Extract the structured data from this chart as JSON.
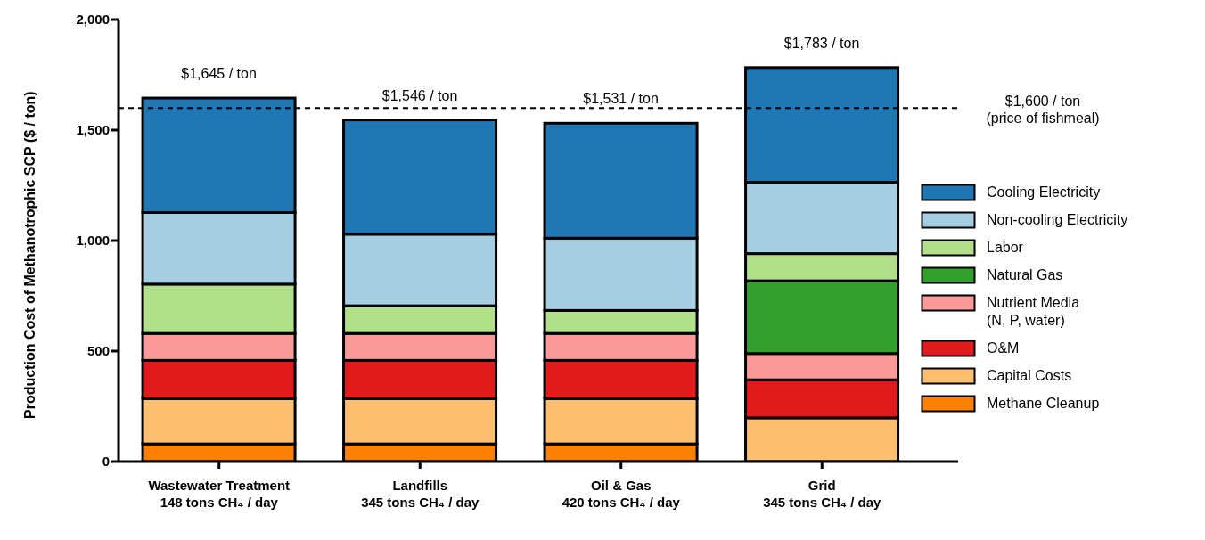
{
  "chart_data": {
    "type": "bar",
    "stacked": true,
    "ylabel": "Production  Cost of Methanotrophic  SCP ($ / ton)",
    "categories": [
      "Wastewater Treatment\n148 tons CH₄ / day",
      "Landfills\n345 tons CH₄ / day",
      "Oil & Gas\n420 tons CH₄ / day",
      "Grid\n345 tons CH₄ / day"
    ],
    "series": [
      {
        "name": "Methane Cleanup",
        "color": "#ff8000",
        "values": [
          80,
          80,
          80,
          0
        ]
      },
      {
        "name": "Capital Costs",
        "color": "#fdbf6f",
        "values": [
          205,
          205,
          205,
          198
        ]
      },
      {
        "name": "O&M",
        "color": "#e31a1c",
        "values": [
          173,
          173,
          173,
          172
        ]
      },
      {
        "name": "Nutrient Media\n(N, P, water)",
        "color": "#fb9a99",
        "values": [
          122,
          122,
          122,
          119
        ]
      },
      {
        "name": "Natural Gas",
        "color": "#33a02c",
        "values": [
          0,
          0,
          0,
          329
        ]
      },
      {
        "name": "Labor",
        "color": "#b2df8a",
        "values": [
          223,
          125,
          104,
          123
        ]
      },
      {
        "name": "Non-cooling Electricity",
        "color": "#a6cee3",
        "values": [
          324,
          324,
          327,
          323
        ]
      },
      {
        "name": "Cooling Electricity",
        "color": "#1f78b4",
        "values": [
          518,
          517,
          520,
          519
        ]
      }
    ],
    "totals": [
      "$1,645 / ton",
      "$1,546 / ton",
      "$1,531 / ton",
      "$1,783 / ton"
    ],
    "ylim": [
      0,
      2000
    ],
    "yticks": [
      0,
      500,
      {
        "value": 1000,
        "label": "1,000"
      },
      {
        "value": 1500,
        "label": "1,500"
      },
      {
        "value": 2000,
        "label": "2,000"
      }
    ],
    "ref_lines": [
      {
        "axis": "y",
        "value": 1600,
        "label": "$1,600 / ton\n(price of fishmeal)",
        "color": "#000000",
        "line_style": "dashed"
      }
    ],
    "legend": "right",
    "grid": false
  }
}
